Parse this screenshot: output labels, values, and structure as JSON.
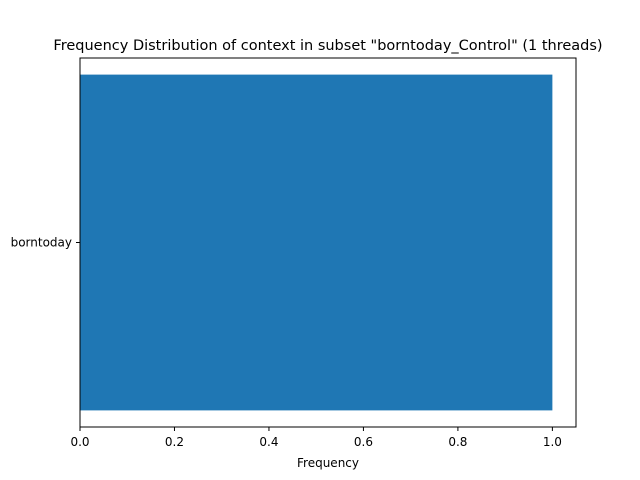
{
  "chart_data": {
    "type": "bar",
    "orientation": "horizontal",
    "title": "Frequency Distribution of context in subset \"borntoday_Control\" (1 threads)",
    "xlabel": "Frequency",
    "ylabel": "",
    "categories": [
      "borntoday"
    ],
    "values": [
      1.0
    ],
    "xlim": [
      0,
      1.05
    ],
    "xticks": [
      "0.0",
      "0.2",
      "0.4",
      "0.6",
      "0.8",
      "1.0"
    ],
    "bar_color": "#1f77b4",
    "grid": false,
    "legend": "none"
  }
}
